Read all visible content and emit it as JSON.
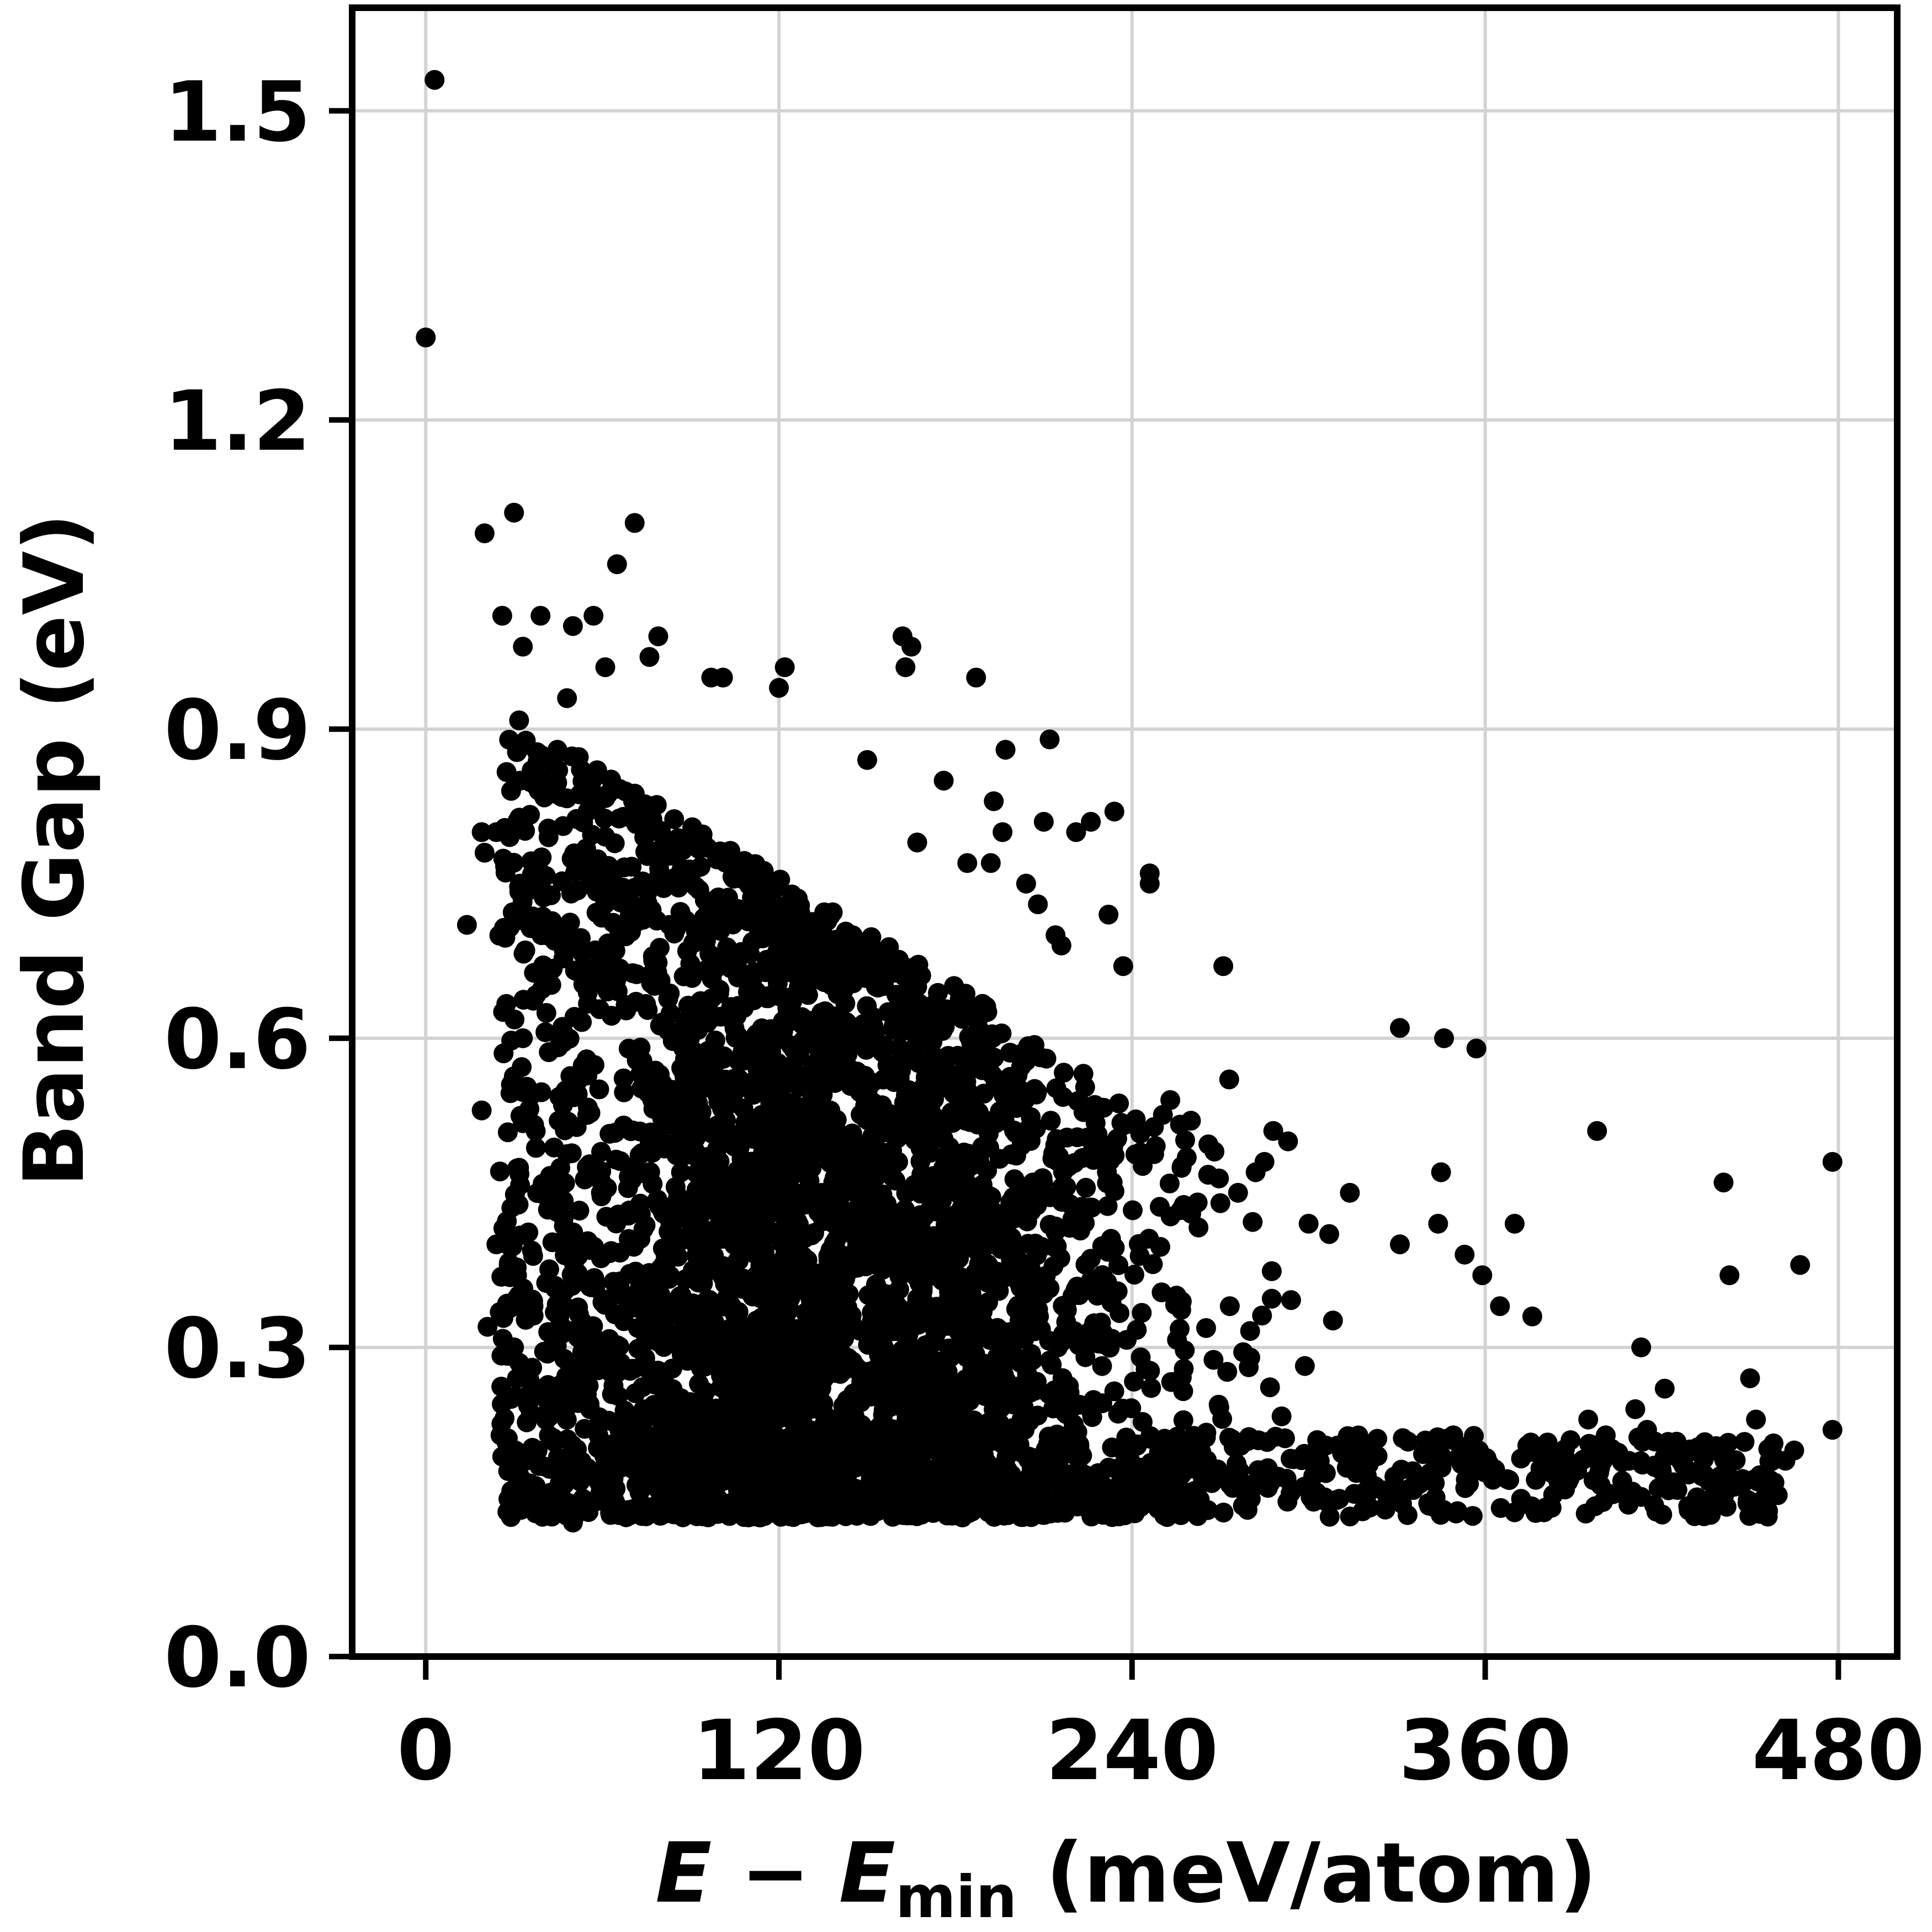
{
  "chart_data": {
    "type": "scatter",
    "title": "",
    "xlabel": {
      "italic_main": "E",
      "operator": " − ",
      "italic_sub_base": "E",
      "subscript": "min",
      "unit": " (meV/atom)"
    },
    "ylabel": "Band Gap (eV)",
    "xlim": [
      -25,
      500
    ],
    "ylim": [
      0.0,
      1.6
    ],
    "xticks": [
      0,
      120,
      240,
      360,
      480
    ],
    "yticks": [
      0.0,
      0.3,
      0.6,
      0.9,
      1.2,
      1.5
    ],
    "xtick_labels": [
      "0",
      "120",
      "240",
      "360",
      "480"
    ],
    "ytick_labels": [
      "0.0",
      "0.3",
      "0.6",
      "0.9",
      "1.2",
      "1.5"
    ],
    "grid": true,
    "point_color": "#000000",
    "points": [
      [
        0,
        1.28
      ],
      [
        3,
        1.53
      ],
      [
        20,
        1.09
      ],
      [
        30,
        1.11
      ],
      [
        71,
        1.1
      ],
      [
        65,
        1.06
      ],
      [
        26,
        1.01
      ],
      [
        39,
        1.01
      ],
      [
        50,
        1.0
      ],
      [
        57,
        1.01
      ],
      [
        33,
        0.98
      ],
      [
        79,
        0.99
      ],
      [
        76,
        0.97
      ],
      [
        61,
        0.96
      ],
      [
        48,
        0.93
      ],
      [
        97,
        0.95
      ],
      [
        101,
        0.95
      ],
      [
        120,
        0.94
      ],
      [
        122,
        0.96
      ],
      [
        162,
        0.99
      ],
      [
        163,
        0.96
      ],
      [
        165,
        0.98
      ],
      [
        187,
        0.95
      ],
      [
        150,
        0.87
      ],
      [
        197,
        0.88
      ],
      [
        212,
        0.89
      ],
      [
        176,
        0.85
      ],
      [
        193,
        0.83
      ],
      [
        210,
        0.81
      ],
      [
        221,
        0.8
      ],
      [
        226,
        0.81
      ],
      [
        234,
        0.82
      ],
      [
        196,
        0.8
      ],
      [
        192,
        0.77
      ],
      [
        184,
        0.77
      ],
      [
        167,
        0.79
      ],
      [
        14,
        0.71
      ],
      [
        19,
        0.8
      ],
      [
        24,
        0.8
      ],
      [
        25,
        0.7
      ],
      [
        20,
        0.78
      ],
      [
        29,
        0.84
      ],
      [
        32,
        0.75
      ],
      [
        39,
        0.75
      ],
      [
        36,
        0.86
      ],
      [
        45,
        0.86
      ],
      [
        55,
        0.82
      ],
      [
        204,
        0.75
      ],
      [
        208,
        0.73
      ],
      [
        232,
        0.72
      ],
      [
        246,
        0.76
      ],
      [
        246,
        0.75
      ],
      [
        216,
        0.69
      ],
      [
        214,
        0.7
      ],
      [
        237,
        0.67
      ],
      [
        271,
        0.67
      ],
      [
        19,
        0.53
      ],
      [
        21,
        0.32
      ],
      [
        24,
        0.4
      ],
      [
        28,
        0.4
      ],
      [
        31,
        0.37
      ],
      [
        33,
        0.6
      ],
      [
        35,
        0.53
      ],
      [
        30,
        0.3
      ],
      [
        29,
        0.25
      ],
      [
        28,
        0.18
      ],
      [
        30,
        0.14
      ],
      [
        34,
        0.19
      ],
      [
        38,
        0.2
      ],
      [
        40,
        0.14
      ],
      [
        45,
        0.15
      ],
      [
        50,
        0.13
      ],
      [
        331,
        0.61
      ],
      [
        346,
        0.6
      ],
      [
        357,
        0.59
      ],
      [
        398,
        0.51
      ],
      [
        314,
        0.45
      ],
      [
        331,
        0.4
      ],
      [
        345,
        0.47
      ],
      [
        344,
        0.42
      ],
      [
        353,
        0.39
      ],
      [
        370,
        0.42
      ],
      [
        359,
        0.37
      ],
      [
        365,
        0.34
      ],
      [
        376,
        0.33
      ],
      [
        413,
        0.3
      ],
      [
        441,
        0.46
      ],
      [
        443,
        0.37
      ],
      [
        450,
        0.27
      ],
      [
        452,
        0.23
      ],
      [
        467,
        0.38
      ],
      [
        478,
        0.48
      ],
      [
        478,
        0.22
      ],
      [
        465,
        0.2
      ],
      [
        462,
        0.19
      ],
      [
        455,
        0.17
      ],
      [
        457,
        0.16
      ],
      [
        436,
        0.15
      ],
      [
        432,
        0.14
      ],
      [
        420,
        0.18
      ],
      [
        410,
        0.16
      ],
      [
        400,
        0.15
      ],
      [
        380,
        0.14
      ],
      [
        370,
        0.14
      ],
      [
        389,
        0.21
      ],
      [
        395,
        0.23
      ],
      [
        400,
        0.19
      ],
      [
        411,
        0.24
      ],
      [
        415,
        0.22
      ],
      [
        421,
        0.26
      ],
      [
        427,
        0.2
      ],
      [
        436,
        0.17
      ],
      [
        273,
        0.56
      ],
      [
        268,
        0.49
      ],
      [
        288,
        0.51
      ],
      [
        293,
        0.5
      ],
      [
        300,
        0.42
      ],
      [
        307,
        0.41
      ],
      [
        260,
        0.52
      ],
      [
        253,
        0.54
      ],
      [
        282,
        0.47
      ],
      [
        285,
        0.48
      ],
      [
        276,
        0.45
      ],
      [
        270,
        0.44
      ]
    ]
  }
}
